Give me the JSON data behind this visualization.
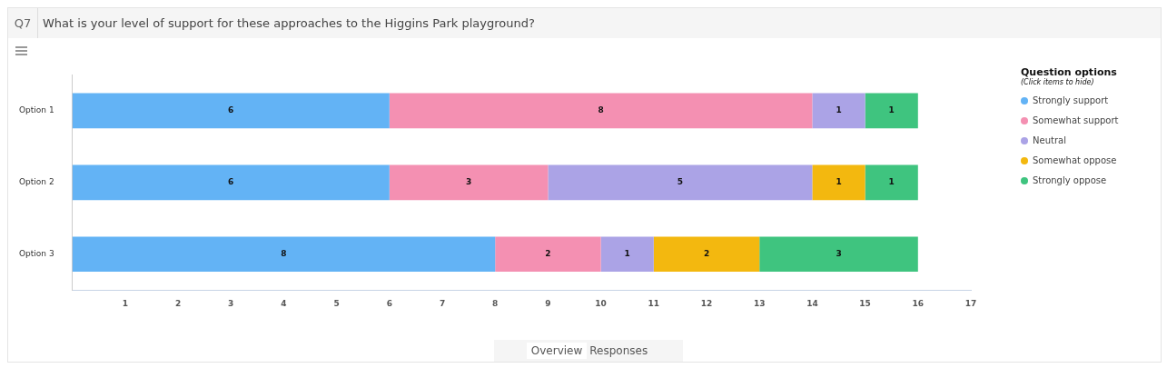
{
  "chart_data": {
    "type": "bar",
    "orientation": "horizontal",
    "stacked": true,
    "title": "What is your level of support for these approaches to the Higgins Park playground?",
    "categories": [
      "Option 1",
      "Option 2",
      "Option 3"
    ],
    "series": [
      {
        "name": "Strongly support",
        "color": "#63b3f5",
        "values": [
          6,
          6,
          8
        ]
      },
      {
        "name": "Somewhat support",
        "color": "#f490b2",
        "values": [
          8,
          3,
          2
        ]
      },
      {
        "name": "Neutral",
        "color": "#aba3e6",
        "values": [
          1,
          5,
          1
        ]
      },
      {
        "name": "Somewhat oppose",
        "color": "#f3b80f",
        "values": [
          null,
          1,
          2
        ]
      },
      {
        "name": "Strongly oppose",
        "color": "#3fc47f",
        "values": [
          1,
          1,
          3
        ]
      }
    ],
    "xlim": [
      0,
      17
    ],
    "xticks": [
      1,
      2,
      3,
      4,
      5,
      6,
      7,
      8,
      9,
      10,
      11,
      12,
      13,
      14,
      15,
      16,
      17
    ],
    "data_labels": true,
    "legend": "right",
    "legend_title": "Question options",
    "grid": false,
    "annotations": [
      "Q7",
      "(Click items to hide)",
      "Overview",
      "Responses"
    ]
  }
}
